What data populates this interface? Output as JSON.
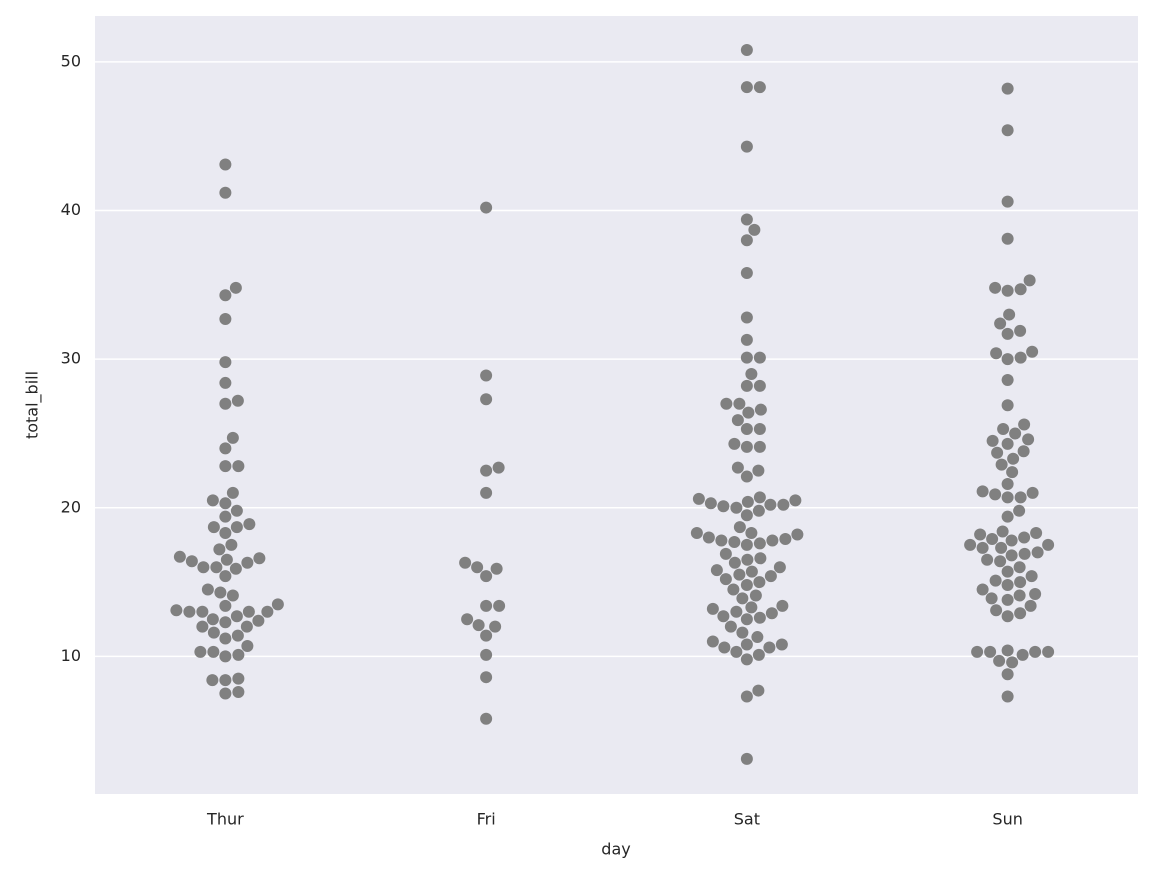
{
  "chart_data": {
    "type": "swarm",
    "xlabel": "day",
    "ylabel": "total_bill",
    "categories": [
      "Thur",
      "Fri",
      "Sat",
      "Sun"
    ],
    "color": "#808080",
    "values": [
      [
        43.1,
        41.2,
        34.8,
        34.3,
        32.7,
        29.8,
        28.4,
        27.2,
        27.0,
        24.7,
        24.0,
        22.8,
        22.8,
        21.0,
        20.5,
        20.3,
        19.8,
        19.4,
        18.9,
        18.7,
        18.7,
        18.3,
        17.5,
        17.2,
        16.7,
        16.6,
        16.5,
        16.4,
        16.3,
        16.0,
        16.0,
        15.9,
        15.4,
        14.5,
        14.3,
        14.1,
        13.4,
        13.5,
        13.0,
        13.0,
        13.0,
        13.1,
        12.7,
        12.5,
        12.4,
        12.0,
        11.6,
        11.4,
        11.2,
        10.7,
        10.3,
        10.3,
        10.1,
        10.0,
        8.5,
        8.4,
        8.4,
        7.6,
        7.5,
        13.0,
        12.0,
        12.3
      ],
      [
        40.2,
        28.9,
        27.3,
        22.7,
        22.5,
        21.0,
        16.3,
        16.0,
        15.9,
        15.4,
        13.4,
        13.4,
        12.5,
        12.0,
        12.1,
        11.4,
        10.1,
        8.6,
        5.8
      ],
      [
        50.8,
        48.3,
        48.3,
        44.3,
        39.4,
        38.7,
        38.0,
        35.8,
        32.8,
        31.3,
        30.1,
        30.1,
        29.0,
        28.2,
        28.2,
        27.0,
        27.0,
        26.6,
        26.4,
        25.9,
        25.3,
        25.3,
        24.3,
        24.1,
        24.1,
        22.7,
        22.5,
        22.1,
        20.7,
        20.6,
        20.5,
        20.4,
        20.3,
        20.2,
        20.2,
        20.1,
        20.0,
        19.8,
        19.5,
        18.7,
        18.3,
        18.3,
        18.2,
        18.0,
        17.9,
        17.8,
        17.8,
        17.7,
        17.6,
        17.5,
        16.9,
        16.5,
        16.3,
        16.0,
        15.8,
        15.7,
        15.5,
        15.4,
        15.2,
        15.0,
        14.8,
        14.5,
        14.1,
        13.9,
        13.4,
        13.3,
        13.2,
        13.0,
        12.9,
        12.7,
        12.6,
        12.0,
        11.6,
        11.3,
        11.0,
        10.8,
        10.8,
        10.6,
        10.6,
        10.3,
        10.1,
        9.8,
        7.7,
        7.3,
        3.1,
        16.6,
        12.5
      ],
      [
        48.2,
        45.4,
        40.6,
        38.1,
        35.3,
        34.8,
        34.7,
        34.6,
        33.0,
        32.4,
        31.9,
        31.7,
        30.5,
        30.4,
        30.1,
        30.0,
        28.6,
        26.9,
        25.6,
        25.3,
        25.0,
        24.6,
        24.5,
        24.3,
        23.8,
        23.7,
        23.3,
        22.9,
        22.4,
        21.6,
        21.1,
        21.0,
        20.9,
        20.7,
        20.7,
        19.8,
        19.4,
        18.4,
        18.3,
        18.2,
        18.0,
        17.9,
        17.8,
        17.5,
        17.5,
        17.3,
        17.3,
        17.0,
        16.9,
        16.8,
        16.5,
        16.4,
        16.0,
        15.7,
        15.4,
        15.1,
        15.0,
        14.8,
        14.5,
        14.2,
        14.1,
        13.9,
        13.8,
        13.4,
        13.1,
        12.9,
        12.7,
        10.4,
        10.3,
        10.3,
        10.3,
        10.3,
        10.1,
        9.7,
        9.6,
        8.8,
        7.3
      ]
    ],
    "ylim": [
      0.74,
      53.09
    ],
    "yticks": [
      10,
      20,
      30,
      40,
      50
    ],
    "grid": true
  }
}
